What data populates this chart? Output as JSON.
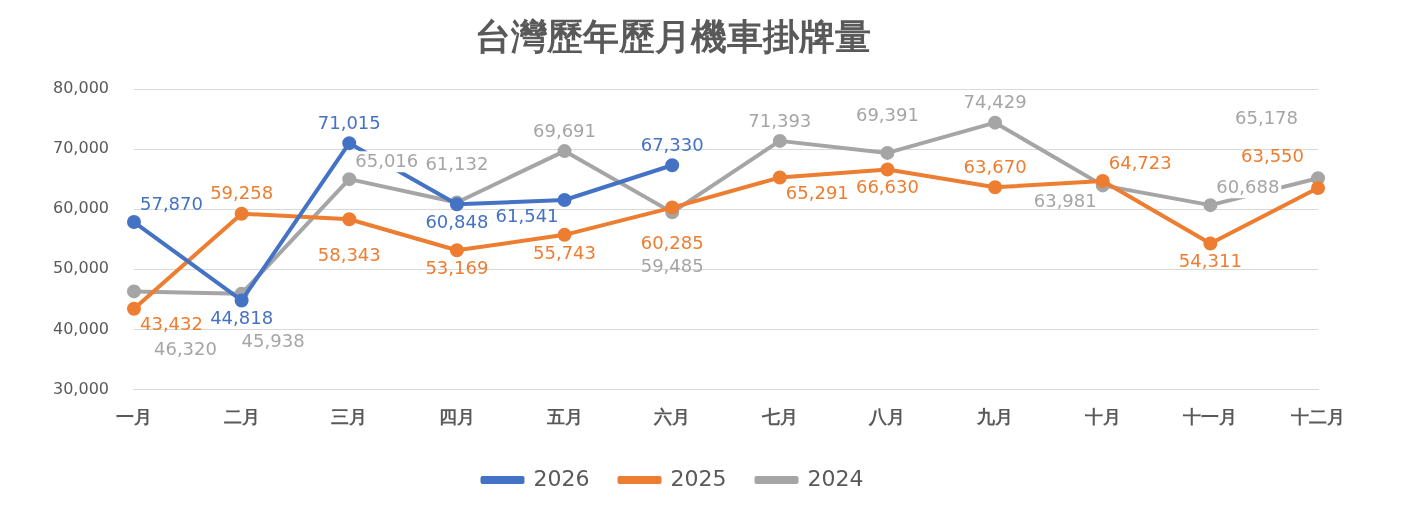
{
  "chart_data": {
    "type": "line",
    "title": "台灣歷年歷月機車掛牌量",
    "categories": [
      "一月",
      "二月",
      "三月",
      "四月",
      "五月",
      "六月",
      "七月",
      "八月",
      "九月",
      "十月",
      "十一月",
      "十二月"
    ],
    "series": [
      {
        "name": "2026",
        "color": "#4472c4",
        "values": [
          57870,
          44818,
          71015,
          60848,
          61541,
          67330,
          null,
          null,
          null,
          null,
          null,
          null
        ],
        "value_labels": [
          "57,870",
          "44,818",
          "71,015",
          "60,848",
          "61,541",
          "67,330",
          null,
          null,
          null,
          null,
          null,
          null
        ]
      },
      {
        "name": "2025",
        "color": "#ed7d31",
        "values": [
          43432,
          59258,
          58343,
          53169,
          55743,
          60285,
          65291,
          66630,
          63670,
          64723,
          54311,
          63550
        ],
        "value_labels": [
          "43,432",
          "59,258",
          "58,343",
          "53,169",
          "55,743",
          "60,285",
          "65,291",
          "66,630",
          "63,670",
          "64,723",
          "54,311",
          "63,550"
        ]
      },
      {
        "name": "2024",
        "color": "#a5a5a5",
        "values": [
          46320,
          45938,
          65016,
          61132,
          69691,
          59485,
          71393,
          69391,
          74429,
          63981,
          60688,
          65178
        ],
        "value_labels": [
          "46,320",
          "45,938",
          "65,016",
          "61,132",
          "69,691",
          "59,485",
          "71,393",
          "69,391",
          "74,429",
          "63,981",
          "60,688",
          "65,178"
        ]
      }
    ],
    "ylim": [
      30000,
      80000
    ],
    "yticks": [
      {
        "value": 30000,
        "label": "30,000"
      },
      {
        "value": 40000,
        "label": "40,000"
      },
      {
        "value": 50000,
        "label": "50,000"
      },
      {
        "value": 60000,
        "label": "60,000"
      },
      {
        "value": 70000,
        "label": "70,000"
      },
      {
        "value": 80000,
        "label": "80,000"
      }
    ],
    "grid": "y",
    "legend": "bottom",
    "marker": "circle",
    "line_style": "solid"
  }
}
